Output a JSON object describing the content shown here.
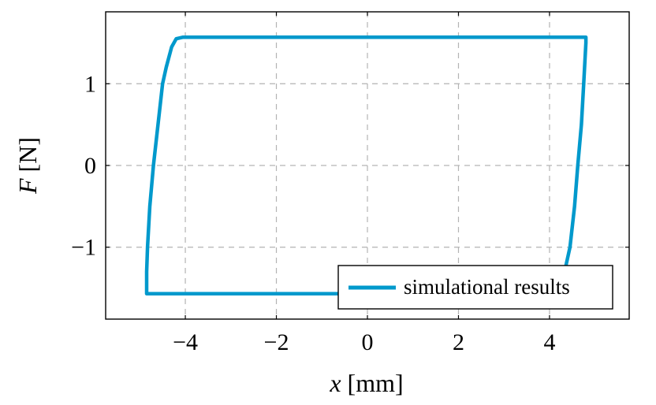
{
  "chart_data": {
    "type": "line",
    "title": "",
    "xlabel_var": "x",
    "xlabel_unit": "[mm]",
    "ylabel_var": "F",
    "ylabel_unit": "[N]",
    "xlim": [
      -5.75,
      5.75
    ],
    "ylim": [
      -1.88,
      1.88
    ],
    "xticks": [
      -4,
      -2,
      0,
      2,
      4
    ],
    "yticks": [
      -1,
      0,
      1
    ],
    "xtick_labels": [
      "−4",
      "−2",
      "0",
      "2",
      "4"
    ],
    "ytick_labels": [
      "−1",
      "0",
      "1"
    ],
    "grid": true,
    "legend_position": "bottom-right",
    "series": [
      {
        "name": "simulational results",
        "color": "#0099cc",
        "x": [
          -4.2,
          -4.05,
          -3.9,
          4.8,
          4.8,
          4.75,
          4.7,
          4.62,
          4.55,
          4.45,
          4.35,
          4.3,
          -4.85,
          -4.85,
          -4.83,
          -4.78,
          -4.7,
          -4.6,
          -4.5,
          -4.42,
          -4.3,
          -4.2
        ],
        "y": [
          1.55,
          1.57,
          1.57,
          1.57,
          1.5,
          1.0,
          0.5,
          0.0,
          -0.5,
          -1.0,
          -1.25,
          -1.57,
          -1.57,
          -1.3,
          -1.0,
          -0.5,
          0.0,
          0.5,
          1.0,
          1.2,
          1.45,
          1.55
        ]
      }
    ]
  }
}
